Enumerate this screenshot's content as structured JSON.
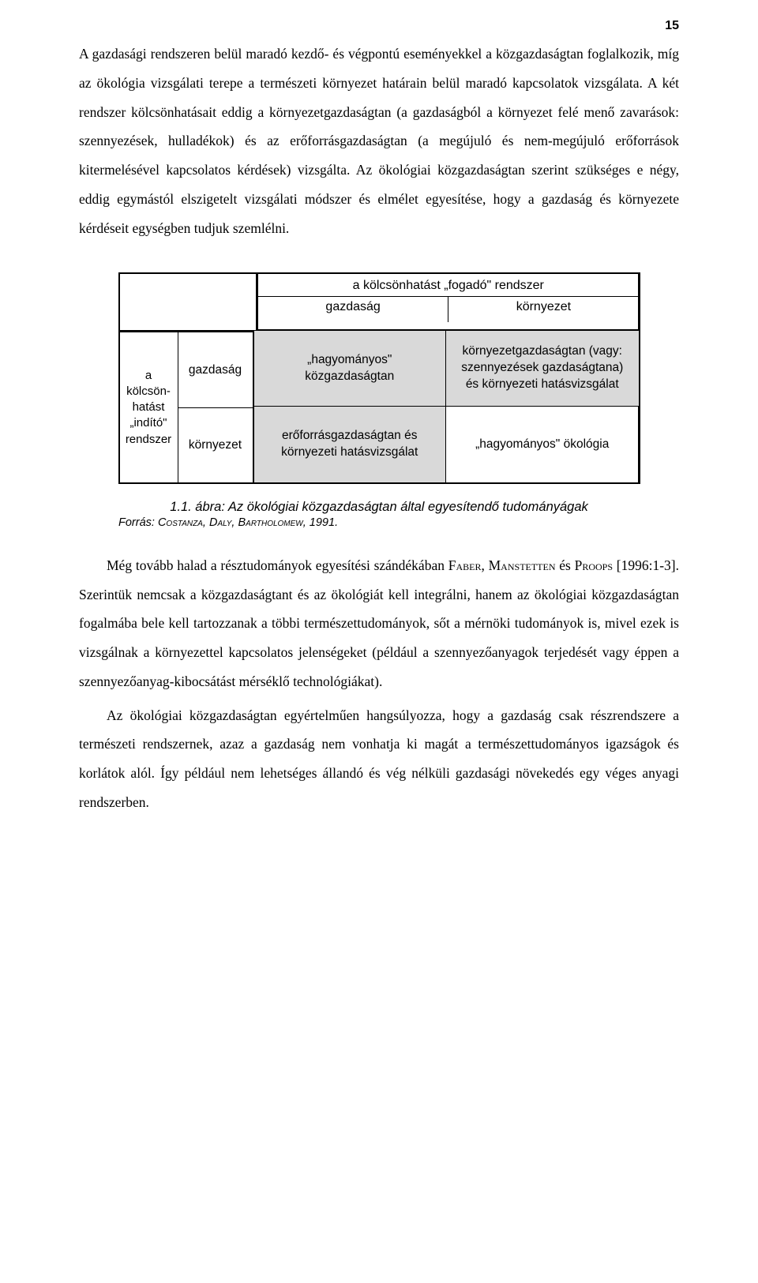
{
  "page_number": "15",
  "para1": "A gazdasági rendszeren belül maradó kezdő- és végpontú eseményekkel a közgazdaságtan foglalkozik, míg az ökológia vizsgálati terepe a természeti környezet határain belül maradó kapcsolatok vizsgálata. A két rendszer kölcsönhatásait eddig a környezetgazdaságtan (a gazdaságból a környezet felé menő zavarások: szennyezések, hulladékok) és az erőforrásgazdaságtan (a megújuló és nem-megújuló erőforrások kitermelésével kapcsolatos kérdések) vizsgálta. Az ökológiai közgazdaságtan szerint szükséges e négy, eddig egymástól elszigetelt vizsgálati módszer és elmélet egyesítése, hogy a gazdaság és környezete kérdéseit egységben tudjuk szemlélni.",
  "table": {
    "header_title": "a kölcsönhatást „fogadó\" rendszer",
    "col1": "gazdaság",
    "col2": "környezet",
    "left_vert": "a kölcsön-hatást „indító\" rendszer",
    "row1_label": "gazdaság",
    "row2_label": "környezet",
    "cell_11": "„hagyományos\" közgazdaságtan",
    "cell_12": "környezetgazdaságtan (vagy: szennyezések gazdaságtana) és környezeti hatásvizsgálat",
    "cell_21": "erőforrásgazdaságtan és környezeti hatásvizsgálat",
    "cell_22": "„hagyományos\" ökológia"
  },
  "caption": "1.1. ábra: Az ökológiai közgazdaságtan által egyesítendő tudományágak",
  "caption_source_prefix": "Forrás: ",
  "caption_source_names": "Costanza, Daly, Bartholomew",
  "caption_source_year": ", 1991.",
  "para2_a": "Még tovább halad a résztudományok egyesítési szándékában ",
  "para2_name1": "Faber",
  "para2_b": ", ",
  "para2_name2": "Manstetten",
  "para2_c": " és ",
  "para2_name3": "Proops",
  "para2_d": " [1996:1-3]. Szerintük nemcsak a közgazdaságtant és az ökológiát kell integrálni, hanem az ökológiai közgazdaságtan fogalmába bele kell tartozzanak a többi természettudományok, sőt a mérnöki tudományok is, mivel ezek is vizsgálnak a környezettel kapcsolatos jelenségeket (például a szennyezőanyagok terjedését vagy éppen a szennyezőanyag-kibocsátást mérséklő technológiákat).",
  "para3": "Az ökológiai közgazdaságtan egyértelműen hangsúlyozza, hogy a gazdaság csak részrendszere a természeti rendszernek, azaz a gazdaság nem vonhatja ki magát a természettudományos igazságok és korlátok alól. Így például nem lehetséges állandó és vég nélküli gazdasági növekedés egy véges anyagi rendszerben."
}
